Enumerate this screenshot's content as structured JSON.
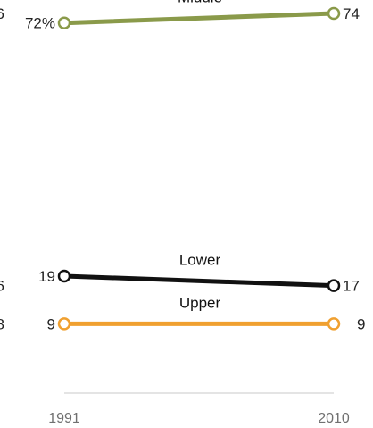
{
  "chart_data": {
    "type": "line",
    "x": [
      "1991",
      "2010"
    ],
    "series": [
      {
        "name": "Middle",
        "values": [
          72,
          74
        ],
        "labels": [
          "72%",
          "74"
        ],
        "color": "#8a9a4a"
      },
      {
        "name": "Lower",
        "values": [
          19,
          17
        ],
        "labels": [
          "19",
          "17"
        ],
        "color": "#111111"
      },
      {
        "name": "Upper",
        "values": [
          9,
          9
        ],
        "labels": [
          "9",
          "9"
        ],
        "color": "#f0a030"
      }
    ],
    "clipped_left_labels": [
      "6",
      "6",
      "8"
    ],
    "title": "",
    "xlabel": "",
    "ylabel": "",
    "ylim": [
      0,
      80
    ],
    "grid": false,
    "legend": "inline"
  }
}
